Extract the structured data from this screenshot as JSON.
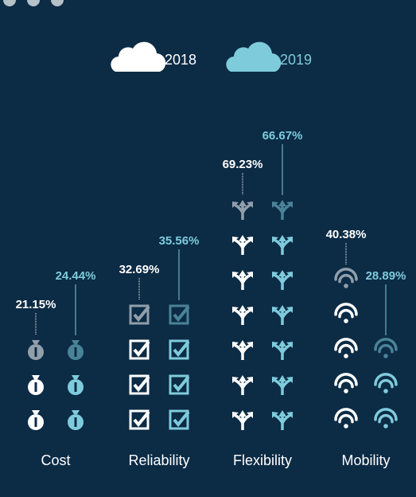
{
  "chart_data": {
    "type": "pictogram",
    "categories": [
      "Cost",
      "Reliability",
      "Flexibility",
      "Mobility"
    ],
    "series": [
      {
        "name": "2018",
        "color": "#ffffff",
        "values": [
          21.15,
          32.69,
          69.23,
          40.38
        ],
        "value_labels": [
          "21.15%",
          "32.69%",
          "69.23%",
          "40.38%"
        ]
      },
      {
        "name": "2019",
        "color": "#7ecbdc",
        "values": [
          24.44,
          35.56,
          66.67,
          28.89
        ],
        "value_labels": [
          "24.44%",
          "35.56%",
          "66.67%",
          "28.89%"
        ]
      }
    ]
  }
}
